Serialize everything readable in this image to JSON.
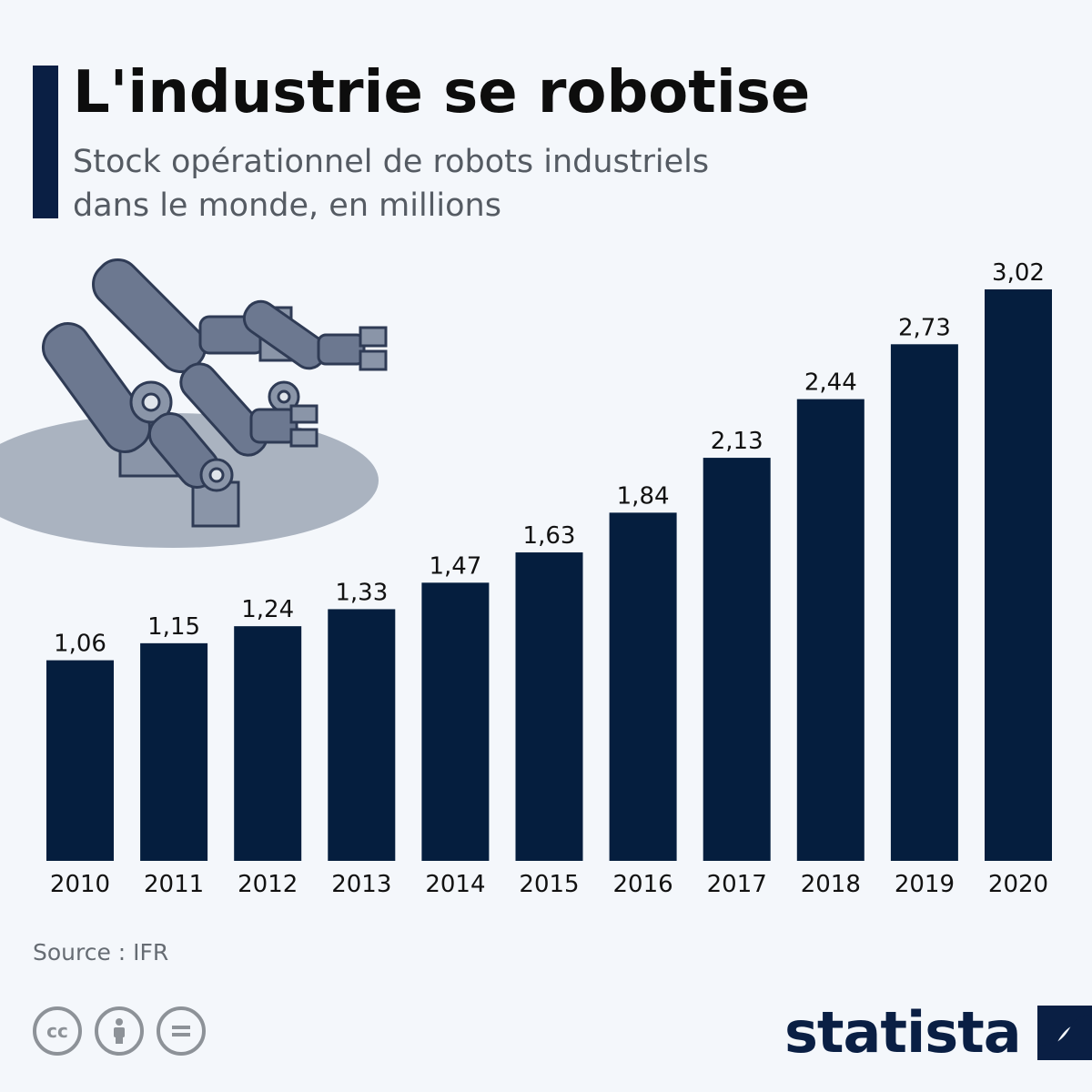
{
  "header": {
    "title": "L'industrie se robotise",
    "subtitle": "Stock opérationnel de robots industriels dans le monde, en millions"
  },
  "footer": {
    "source": "Source : IFR",
    "brand": "statista",
    "license_icons": [
      "cc-icon",
      "attribution-icon",
      "no-derivatives-icon"
    ]
  },
  "colors": {
    "bar": "#051e3e",
    "accent": "#0a1f44",
    "robot": "#6c7890",
    "floor": "#aab3c0"
  },
  "chart_data": {
    "type": "bar",
    "categories": [
      "2010",
      "2011",
      "2012",
      "2013",
      "2014",
      "2015",
      "2016",
      "2017",
      "2018",
      "2019",
      "2020"
    ],
    "values": [
      1.06,
      1.15,
      1.24,
      1.33,
      1.47,
      1.63,
      1.84,
      2.13,
      2.44,
      2.73,
      3.02
    ],
    "data_labels": [
      "1,06",
      "1,15",
      "1,24",
      "1,33",
      "1,47",
      "1,63",
      "1,84",
      "2,13",
      "2,44",
      "2,73",
      "3,02"
    ],
    "title": "L'industrie se robotise",
    "subtitle": "Stock opérationnel de robots industriels dans le monde, en millions",
    "xlabel": "",
    "ylabel": "",
    "ylim": [
      0,
      3.02
    ],
    "grid": false,
    "legend": "none"
  }
}
